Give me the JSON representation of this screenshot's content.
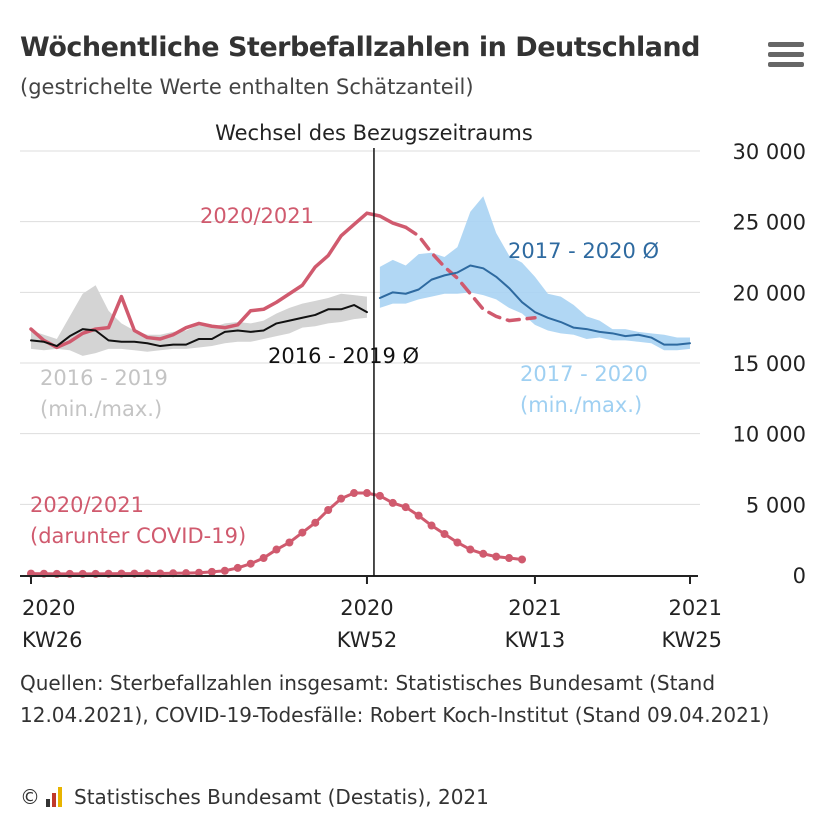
{
  "header": {
    "title": "Wöchentliche Sterbefallzahlen in Deutschland",
    "subtitle": "(gestrichelte Werte enthalten Schätzanteil)"
  },
  "footer": {
    "sources": "Quellen: Sterbefallzahlen insgesamt: Statistisches Bundesamt (Stand 12.04.2021), COVID-19-Todesfälle: Robert Koch-Institut (Stand 09.04.2021)",
    "copyright_symbol": "©",
    "copyright_text": "Statistisches Bundesamt (Destatis), 2021"
  },
  "colors": {
    "red": "#d05a6e",
    "black": "#111111",
    "gray_band": "#d4d4d4",
    "blue": "#2e6aa0",
    "blue_band": "#a9d3f3",
    "grid": "#dddddd"
  },
  "chart_data": {
    "type": "line",
    "title": "Wöchentliche Sterbefallzahlen in Deutschland",
    "annotation_divider": "Wechsel des Bezugszeitraums",
    "ylim": [
      0,
      30000
    ],
    "yticks": [
      0,
      5000,
      10000,
      15000,
      20000,
      25000,
      30000
    ],
    "ytick_labels": [
      "0",
      "5 000",
      "10 000",
      "15 000",
      "20 000",
      "25 000",
      "30 000"
    ],
    "xaxis": {
      "unit": "week_index (0 = KW26 2020)",
      "range": [
        0,
        51
      ],
      "ticks": [
        {
          "x": 0,
          "year": "2020",
          "week": "KW26"
        },
        {
          "x": 26,
          "year": "2020",
          "week": "KW52"
        },
        {
          "x": 39,
          "year": "2021",
          "week": "KW13"
        },
        {
          "x": 51,
          "year": "2021",
          "week": "KW25"
        }
      ],
      "divider_x": 26
    },
    "series": [
      {
        "name": "2020/2021",
        "label": "2020/2021",
        "kind": "line",
        "x": [
          0,
          1,
          2,
          3,
          4,
          5,
          6,
          7,
          8,
          9,
          10,
          11,
          12,
          13,
          14,
          15,
          16,
          17,
          18,
          19,
          20,
          21,
          22,
          23,
          24,
          25,
          26,
          27,
          28,
          29
        ],
        "values": [
          17400,
          16600,
          16100,
          16500,
          17100,
          17400,
          17500,
          19700,
          17300,
          16800,
          16700,
          17000,
          17500,
          17800,
          17600,
          17500,
          17700,
          18700,
          18800,
          19300,
          19900,
          20500,
          21800,
          22600,
          24000,
          24800,
          25600,
          25400,
          24900,
          24600
        ]
      },
      {
        "name": "2020/2021 (Schätzanteil)",
        "label": "2020/2021",
        "kind": "line-dashed",
        "x": [
          29,
          30,
          31,
          32,
          33,
          34,
          35,
          36,
          37,
          38,
          39
        ],
        "values": [
          24600,
          24000,
          22800,
          21800,
          21000,
          19900,
          18800,
          18300,
          18000,
          18100,
          18200
        ]
      },
      {
        "name": "2016 - 2019 Ø",
        "label": "2016 - 2019 Ø",
        "kind": "line",
        "x": [
          0,
          1,
          2,
          3,
          4,
          5,
          6,
          7,
          8,
          9,
          10,
          11,
          12,
          13,
          14,
          15,
          16,
          17,
          18,
          19,
          20,
          21,
          22,
          23,
          24,
          25,
          26
        ],
        "values": [
          16600,
          16500,
          16200,
          16900,
          17400,
          17300,
          16600,
          16500,
          16500,
          16400,
          16200,
          16300,
          16300,
          16700,
          16700,
          17200,
          17300,
          17200,
          17300,
          17800,
          18000,
          18200,
          18400,
          18800,
          18800,
          19100,
          18600
        ]
      },
      {
        "name": "2016 - 2019 (min./max.)",
        "label": "2016 - 2019\n(min./max.)",
        "kind": "band",
        "x": [
          0,
          1,
          2,
          3,
          4,
          5,
          6,
          7,
          8,
          9,
          10,
          11,
          12,
          13,
          14,
          15,
          16,
          17,
          18,
          19,
          20,
          21,
          22,
          23,
          24,
          25,
          26
        ],
        "upper": [
          17300,
          17000,
          16700,
          18300,
          19900,
          20500,
          18700,
          17800,
          17300,
          17000,
          17000,
          17200,
          17300,
          17700,
          17500,
          17800,
          17900,
          17800,
          18000,
          18500,
          18900,
          19200,
          19400,
          19600,
          19900,
          19800,
          19700
        ],
        "lower": [
          16000,
          15900,
          16000,
          15900,
          15500,
          15700,
          16000,
          16000,
          15900,
          15800,
          15900,
          16000,
          16000,
          16100,
          16200,
          16400,
          16500,
          16500,
          16700,
          16900,
          17100,
          17500,
          17600,
          17800,
          17900,
          18100,
          18200
        ]
      },
      {
        "name": "2017 - 2020 Ø",
        "label": "2017 - 2020 Ø",
        "kind": "line",
        "x": [
          27,
          28,
          29,
          30,
          31,
          32,
          33,
          34,
          35,
          36,
          37,
          38,
          39,
          40,
          41,
          42,
          43,
          44,
          45,
          46,
          47,
          48,
          49,
          50,
          51
        ],
        "values": [
          19600,
          20000,
          19900,
          20200,
          20900,
          21200,
          21400,
          21900,
          21700,
          21100,
          20300,
          19300,
          18600,
          18200,
          17900,
          17500,
          17400,
          17200,
          17100,
          16900,
          17000,
          16800,
          16300,
          16300,
          16400
        ]
      },
      {
        "name": "2017 - 2020 (min./max.)",
        "label": "2017 - 2020\n(min./max.)",
        "kind": "band",
        "x": [
          27,
          28,
          29,
          30,
          31,
          32,
          33,
          34,
          35,
          36,
          37,
          38,
          39,
          40,
          41,
          42,
          43,
          44,
          45,
          46,
          47,
          48,
          49,
          50,
          51
        ],
        "upper": [
          21800,
          22300,
          21900,
          22700,
          22800,
          22500,
          23200,
          25700,
          26800,
          24200,
          22600,
          22100,
          21100,
          19900,
          19700,
          19100,
          18300,
          18000,
          17400,
          17400,
          17200,
          17100,
          17000,
          16800,
          16800
        ],
        "lower": [
          18900,
          19200,
          19200,
          19500,
          19700,
          19900,
          19900,
          20000,
          19800,
          19500,
          18900,
          18500,
          17700,
          17300,
          17100,
          17000,
          16700,
          16800,
          16600,
          16600,
          16500,
          16400,
          15900,
          15900,
          16000
        ]
      },
      {
        "name": "2020/2021 (darunter COVID-19)",
        "label": "2020/2021\n(darunter COVID-19)",
        "kind": "line-markers",
        "x": [
          0,
          1,
          2,
          3,
          4,
          5,
          6,
          7,
          8,
          9,
          10,
          11,
          12,
          13,
          14,
          15,
          16,
          17,
          18,
          19,
          20,
          21,
          22,
          23,
          24,
          25,
          26,
          27,
          28,
          29,
          30,
          31,
          32,
          33,
          34,
          35,
          36,
          37,
          38
        ],
        "values": [
          100,
          90,
          80,
          80,
          80,
          80,
          90,
          100,
          100,
          110,
          110,
          120,
          130,
          160,
          220,
          300,
          500,
          800,
          1200,
          1800,
          2300,
          3000,
          3700,
          4600,
          5400,
          5800,
          5800,
          5600,
          5100,
          4800,
          4200,
          3500,
          2900,
          2300,
          1800,
          1500,
          1300,
          1200,
          1100
        ]
      }
    ],
    "labels": {
      "red_main": "2020/2021",
      "black_avg": "2016 - 2019 Ø",
      "gray_band_l1": "2016 - 2019",
      "gray_band_l2": "(min./max.)",
      "blue_avg": "2017 - 2020 Ø",
      "blue_band_l1": "2017 - 2020",
      "blue_band_l2": "(min./max.)",
      "covid_l1": "2020/2021",
      "covid_l2": "(darunter COVID-19)"
    }
  }
}
